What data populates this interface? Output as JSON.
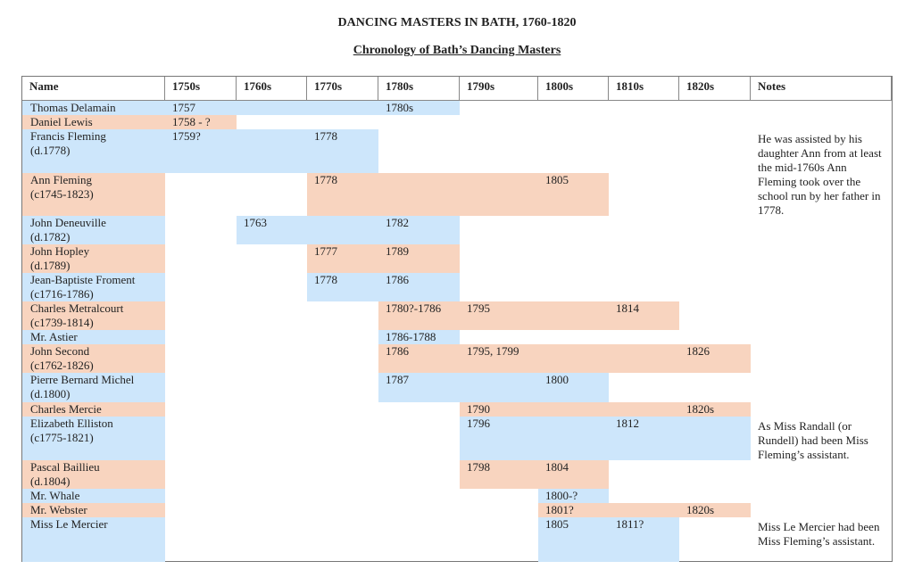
{
  "title": "DANCING MASTERS IN BATH, 1760-1820",
  "subtitle": "Chronology of Bath’s Dancing Masters",
  "colors": {
    "blue": "#cde6fb",
    "orange": "#f8d4bf"
  },
  "headers": [
    "Name",
    "1750s",
    "1760s",
    "1770s",
    "1780s",
    "1790s",
    "1800s",
    "1810s",
    "1820s",
    "Notes"
  ],
  "rows": [
    {
      "name": "Thomas Delamain",
      "color": "blue",
      "span": [
        "1750s",
        "1780s"
      ],
      "values": {
        "1750s": "1757",
        "1780s": "1780s"
      }
    },
    {
      "name": "Daniel Lewis",
      "color": "orange",
      "span": [
        "1750s",
        "1750s"
      ],
      "values": {
        "1750s": "1758 - ?"
      }
    },
    {
      "name": "Francis Fleming\n(d.1778)",
      "color": "blue",
      "span": [
        "1750s",
        "1770s"
      ],
      "values": {
        "1750s": "1759?",
        "1770s": "1778"
      }
    },
    {
      "name": "Ann Fleming\n(c1745-1823)",
      "color": "orange",
      "span": [
        "1770s",
        "1800s"
      ],
      "values": {
        "1770s": "1778",
        "1800s": "1805"
      }
    },
    {
      "name": "John Deneuville\n(d.1782)",
      "color": "blue",
      "span": [
        "1760s",
        "1780s"
      ],
      "values": {
        "1760s": "1763",
        "1780s": "1782"
      }
    },
    {
      "name": "John Hopley\n(d.1789)",
      "color": "orange",
      "span": [
        "1770s",
        "1780s"
      ],
      "values": {
        "1770s": "1777",
        "1780s": "1789"
      }
    },
    {
      "name": "Jean-Baptiste Froment\n(c1716-1786)",
      "color": "blue",
      "span": [
        "1770s",
        "1780s"
      ],
      "values": {
        "1770s": "1778",
        "1780s": "1786"
      }
    },
    {
      "name": "Charles Metralcourt\n(c1739-1814)",
      "color": "orange",
      "span": [
        "1780s",
        "1810s"
      ],
      "values": {
        "1780s": "1780?-1786",
        "1790s": "1795",
        "1810s": "1814"
      }
    },
    {
      "name": "Mr. Astier",
      "color": "blue",
      "span": [
        "1780s",
        "1780s"
      ],
      "values": {
        "1780s": "1786-1788"
      }
    },
    {
      "name": "John Second\n(c1762-1826)",
      "color": "orange",
      "span": [
        "1780s",
        "1820s"
      ],
      "values": {
        "1780s": "1786",
        "1790s": "1795, 1799",
        "1820s": "1826"
      }
    },
    {
      "name": "Pierre Bernard Michel\n(d.1800)",
      "color": "blue",
      "span": [
        "1780s",
        "1800s"
      ],
      "values": {
        "1780s": "1787",
        "1800s": "1800"
      }
    },
    {
      "name": "Charles Mercie",
      "color": "orange",
      "span": [
        "1790s",
        "1820s"
      ],
      "values": {
        "1790s": "1790",
        "1820s": "1820s"
      }
    },
    {
      "name": "Elizabeth Elliston\n(c1775-1821)",
      "color": "blue",
      "span": [
        "1790s",
        "1820s"
      ],
      "values": {
        "1790s": "1796",
        "1810s": "1812"
      }
    },
    {
      "name": "Pascal Baillieu\n(d.1804)",
      "color": "orange",
      "span": [
        "1790s",
        "1800s"
      ],
      "values": {
        "1790s": "1798",
        "1800s": "1804"
      }
    },
    {
      "name": "Mr. Whale",
      "color": "blue",
      "span": [
        "1800s",
        "1800s"
      ],
      "values": {
        "1800s": "1800-?"
      }
    },
    {
      "name": "Mr. Webster",
      "color": "orange",
      "span": [
        "1800s",
        "1820s"
      ],
      "values": {
        "1800s": "1801?",
        "1820s": "1820s"
      }
    },
    {
      "name": "Miss Le Mercier",
      "color": "blue",
      "span": [
        "1800s",
        "1810s"
      ],
      "values": {
        "1800s": "1805",
        "1810s": "1811?"
      }
    }
  ],
  "notes": [
    {
      "text": "He was assisted by his daughter Ann from at least the mid-1760s Ann Fleming took over the school run by her father in 1778.",
      "row": 3,
      "rowspan": 2
    },
    {
      "text": "As Miss Randall (or Rundell) had been Miss Fleming’s assistant.",
      "row": 13,
      "rowspan": 2
    },
    {
      "text": "Miss Le Mercier had been Miss Fleming’s assistant.",
      "row": 17,
      "rowspan": 1
    }
  ]
}
